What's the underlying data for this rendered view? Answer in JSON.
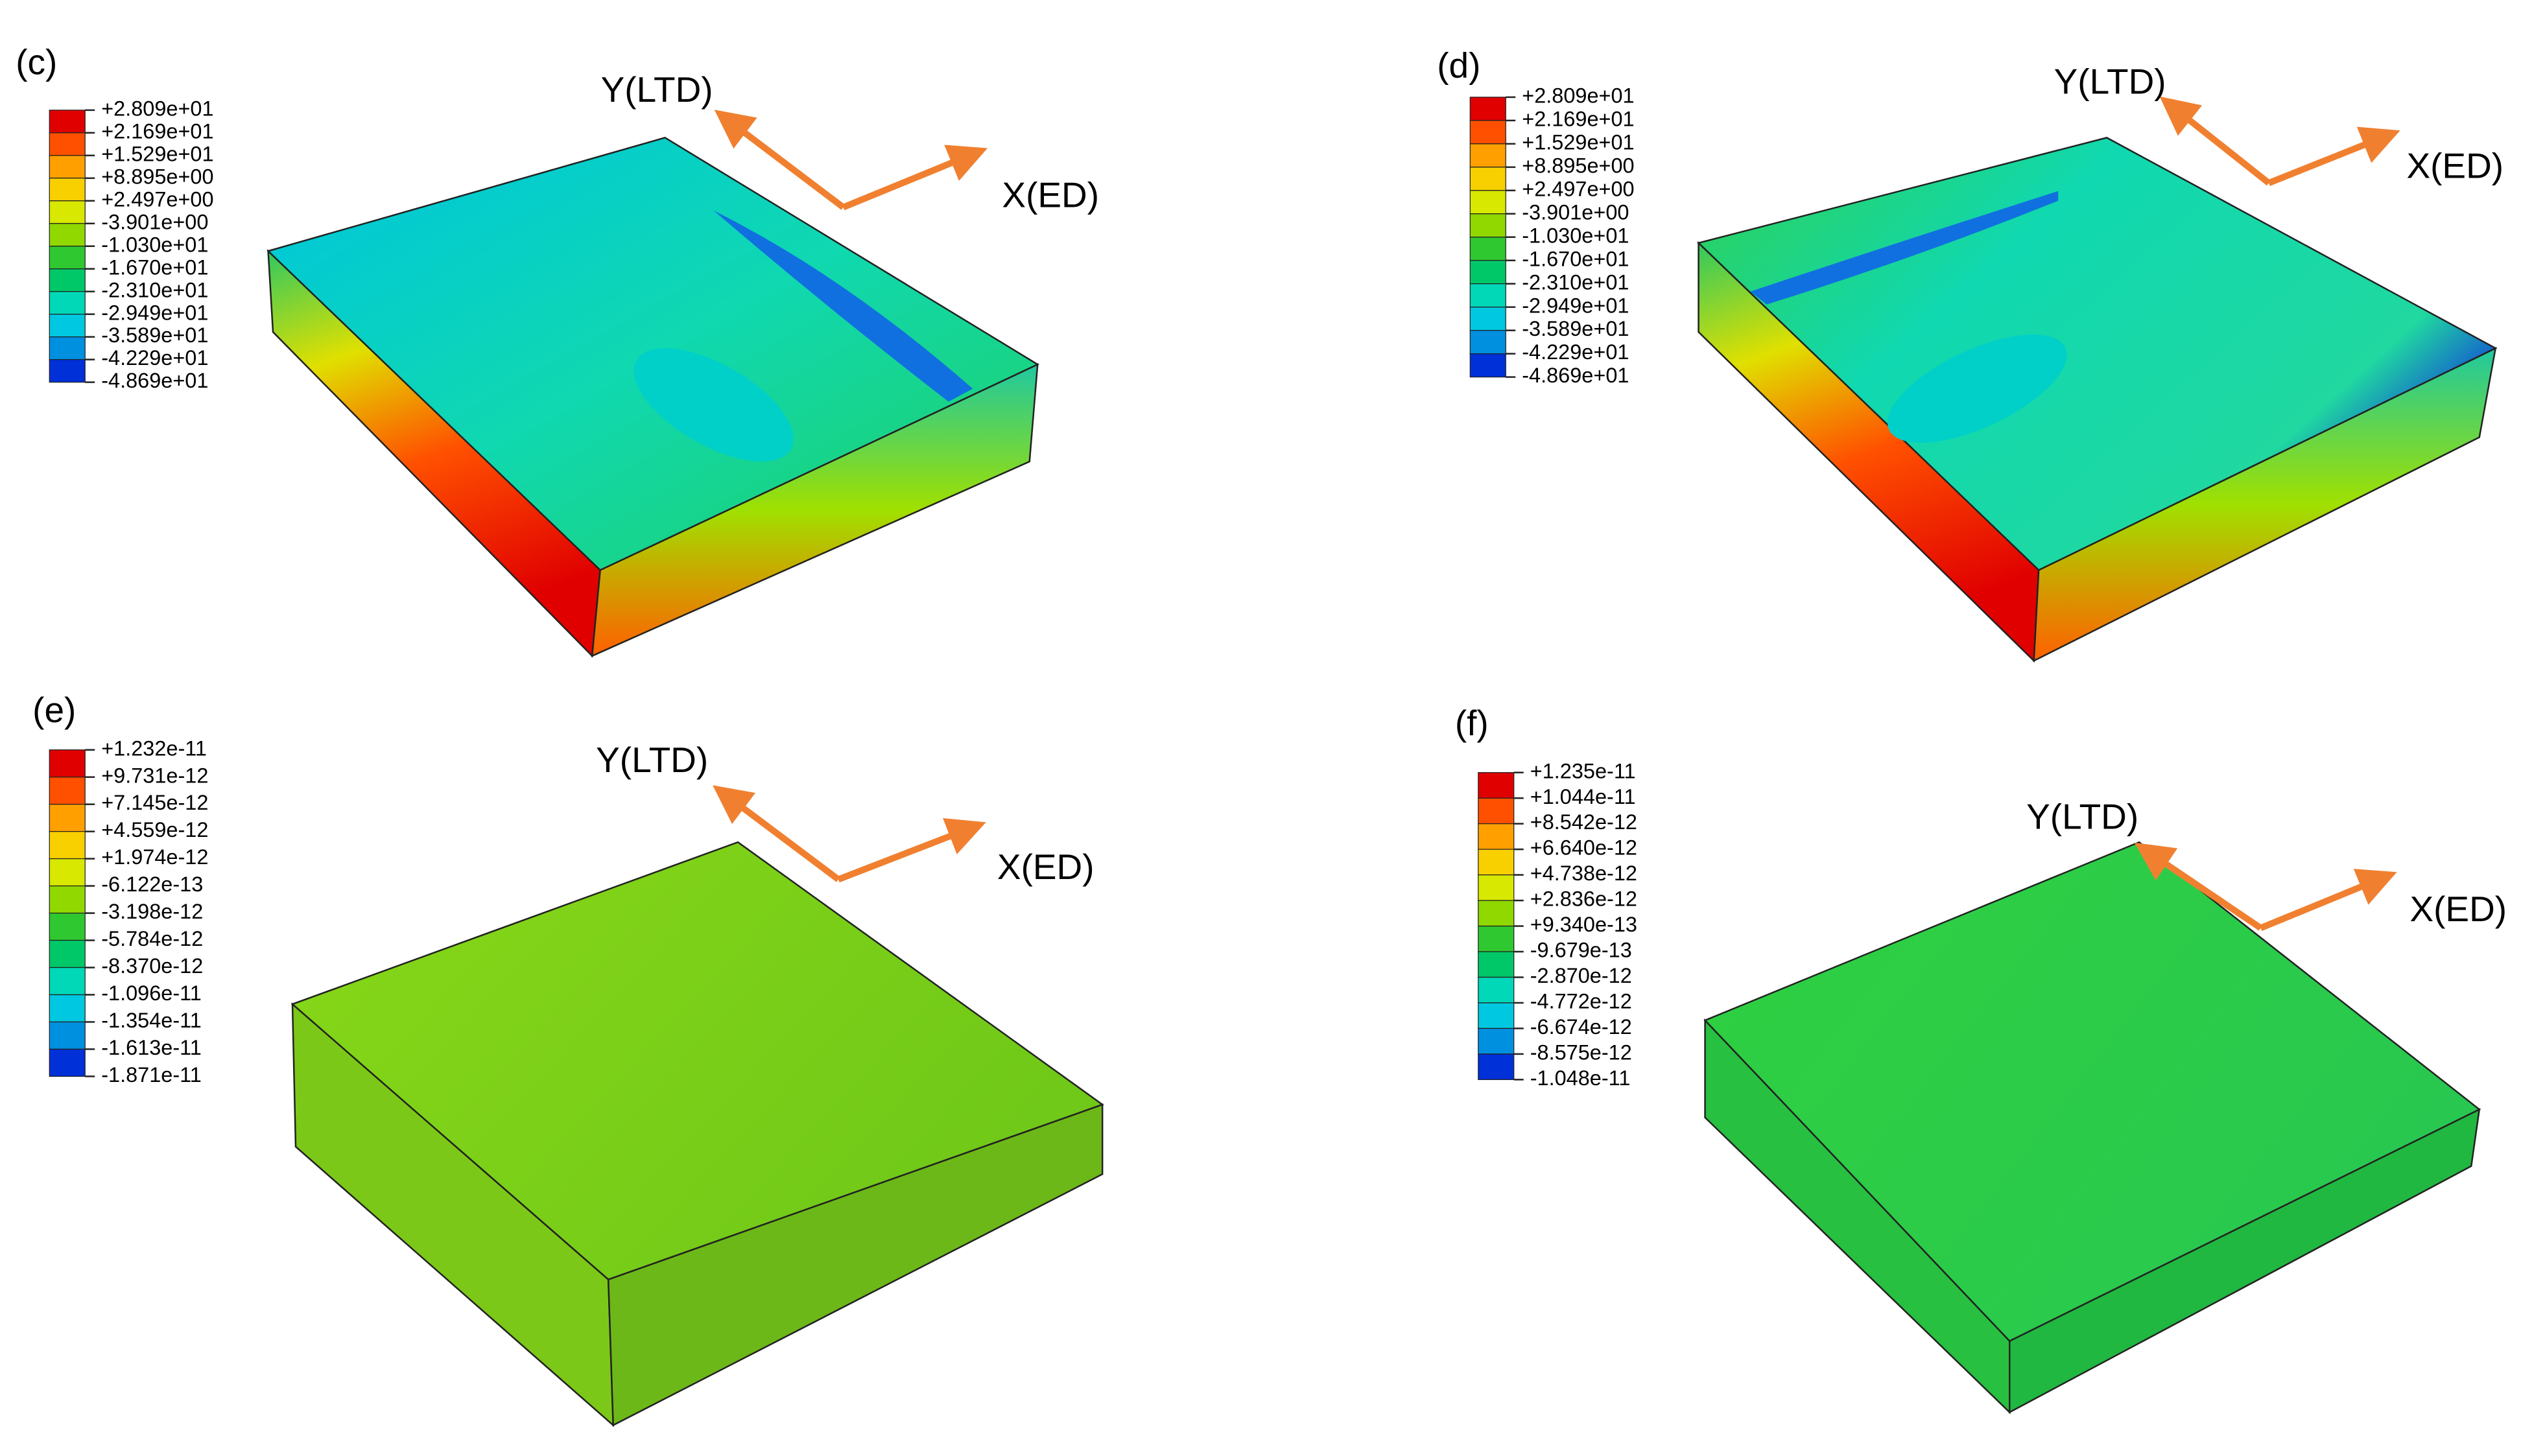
{
  "panels": [
    {
      "label": "(c)",
      "y_axis": "Y(LTD)",
      "x_axis": "X(ED)",
      "legend": [
        "+2.809e+01",
        "+2.169e+01",
        "+1.529e+01",
        "+8.895e+00",
        "+2.497e+00",
        "-3.901e+00",
        "-1.030e+01",
        "-1.670e+01",
        "-2.310e+01",
        "-2.949e+01",
        "-3.589e+01",
        "-4.229e+01",
        "-4.869e+01"
      ]
    },
    {
      "label": "(d)",
      "y_axis": "Y(LTD)",
      "x_axis": "X(ED)",
      "legend": [
        "+2.809e+01",
        "+2.169e+01",
        "+1.529e+01",
        "+8.895e+00",
        "+2.497e+00",
        "-3.901e+00",
        "-1.030e+01",
        "-1.670e+01",
        "-2.310e+01",
        "-2.949e+01",
        "-3.589e+01",
        "-4.229e+01",
        "-4.869e+01"
      ]
    },
    {
      "label": "(e)",
      "y_axis": "Y(LTD)",
      "x_axis": "X(ED)",
      "legend": [
        "+1.232e-11",
        "+9.731e-12",
        "+7.145e-12",
        "+4.559e-12",
        "+1.974e-12",
        "-6.122e-13",
        "-3.198e-12",
        "-5.784e-12",
        "-8.370e-12",
        "-1.096e-11",
        "-1.354e-11",
        "-1.613e-11",
        "-1.871e-11"
      ]
    },
    {
      "label": "(f)",
      "y_axis": "Y(LTD)",
      "x_axis": "X(ED)",
      "legend": [
        "+1.235e-11",
        "+1.044e-11",
        "+8.542e-12",
        "+6.640e-12",
        "+4.738e-12",
        "+2.836e-12",
        "+9.340e-13",
        "-9.679e-13",
        "-2.870e-12",
        "-4.772e-12",
        "-6.674e-12",
        "-8.575e-12",
        "-1.048e-11"
      ]
    }
  ]
}
